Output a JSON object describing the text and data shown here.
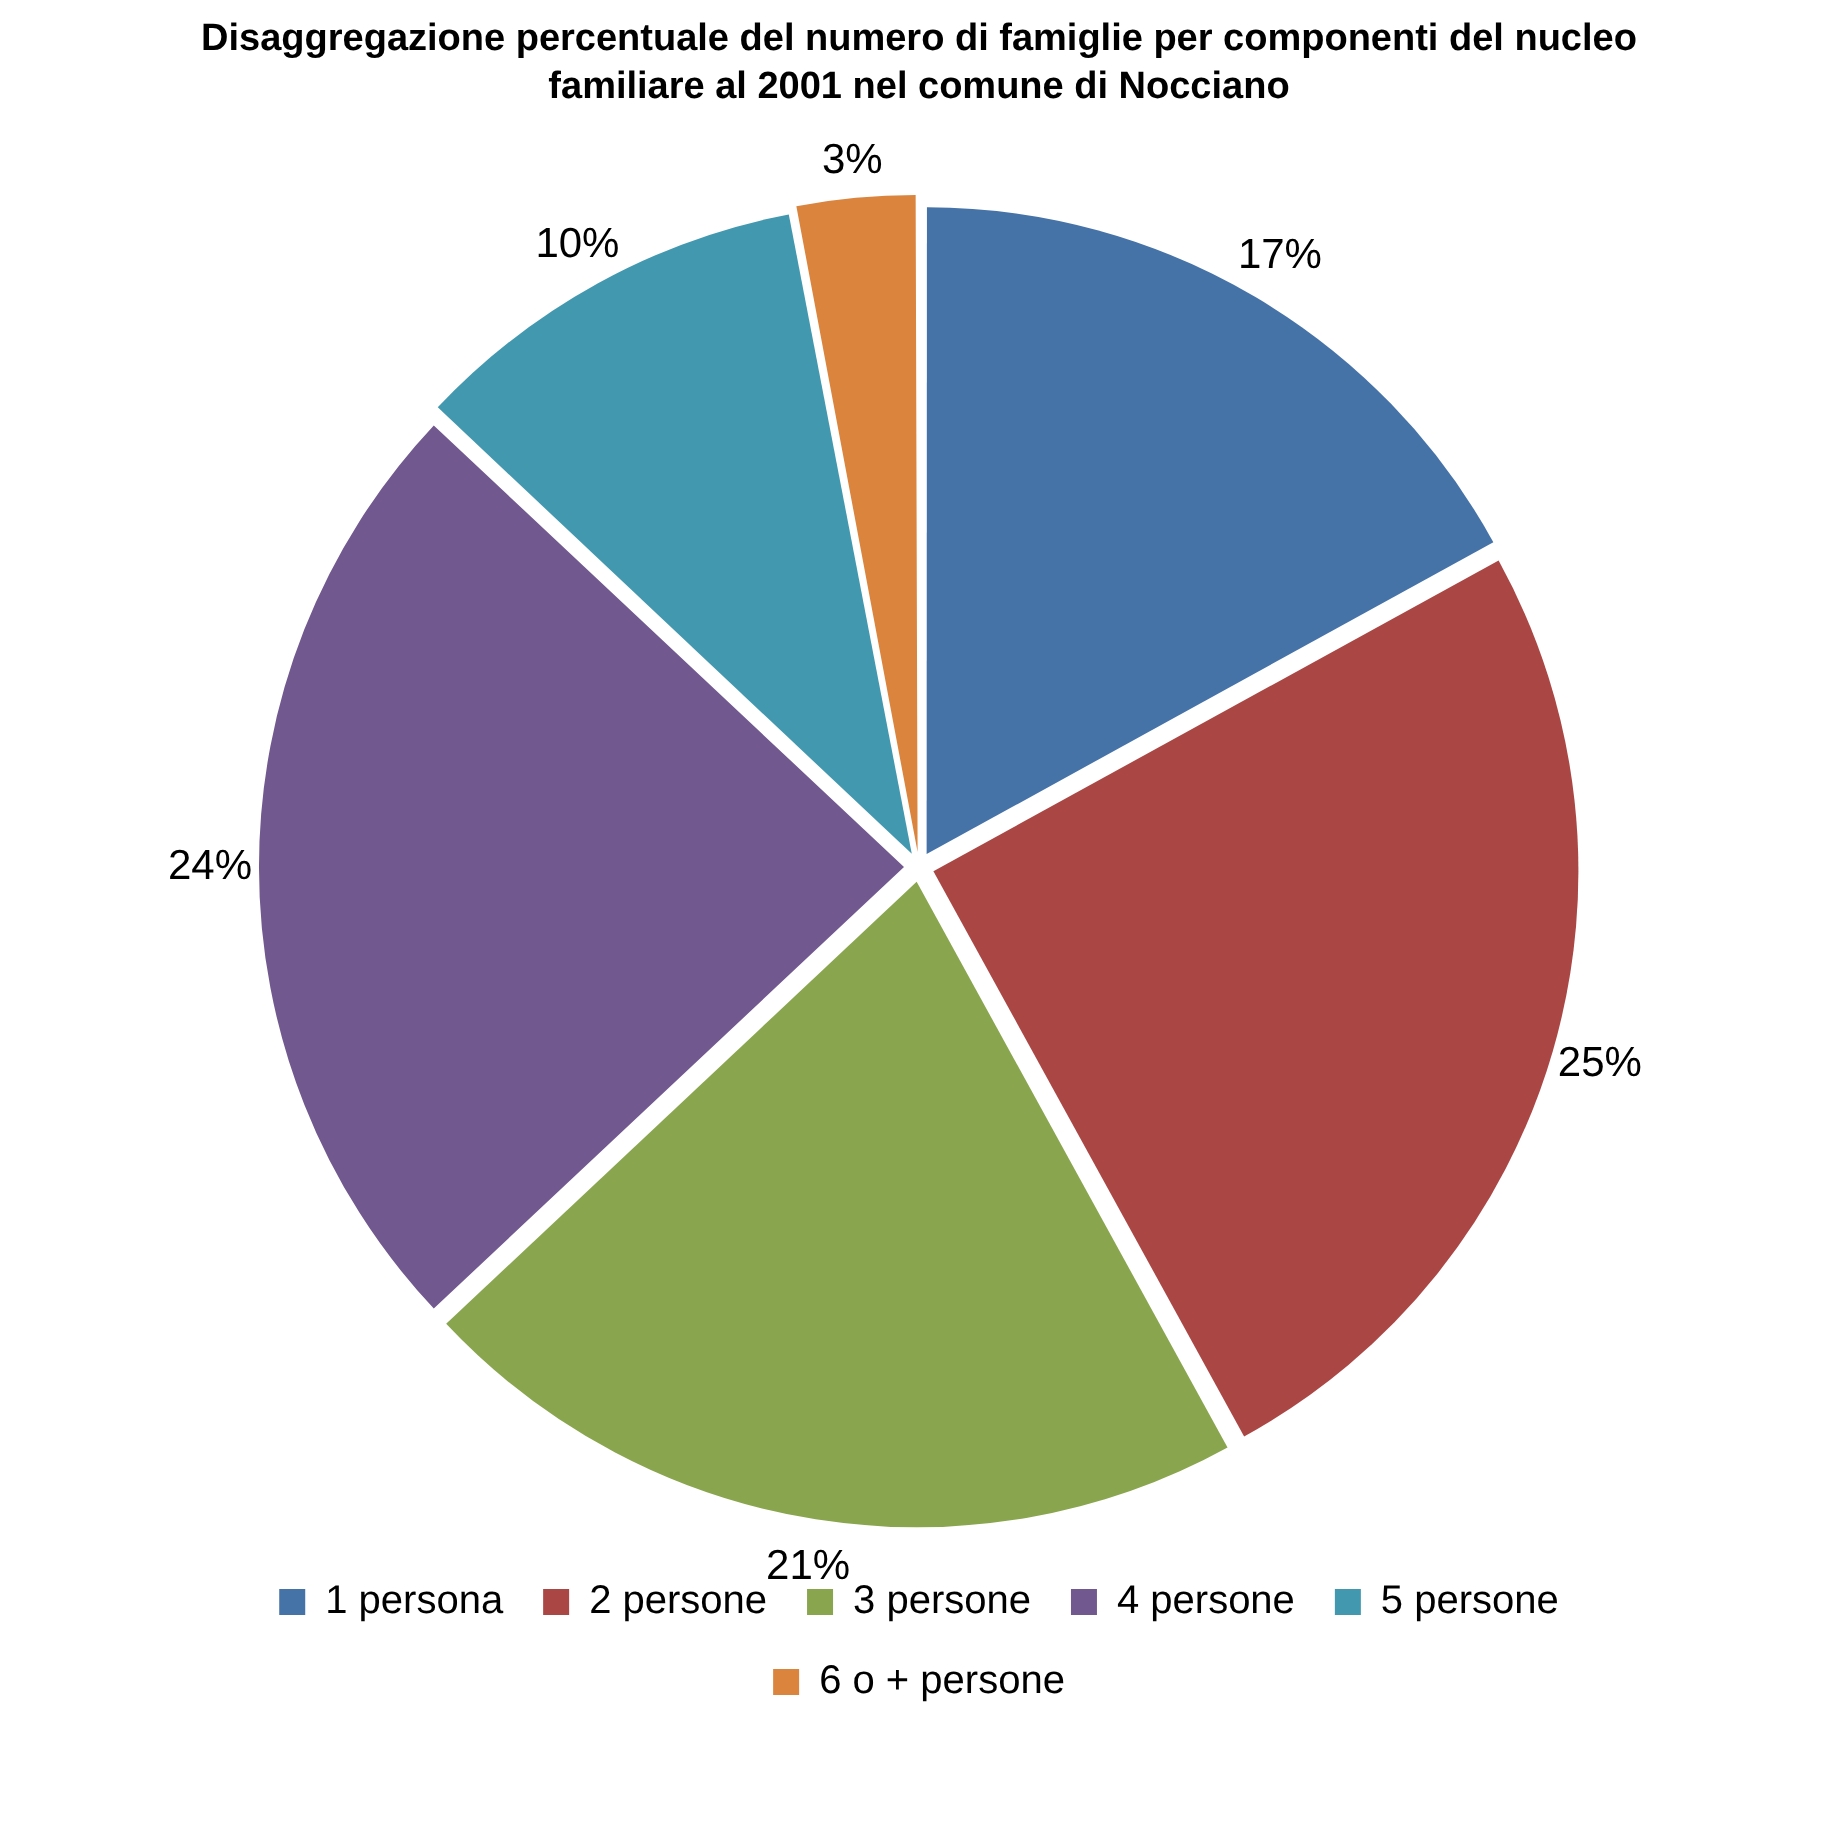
{
  "chart_data": {
    "type": "pie",
    "title": "Disaggregazione percentuale del numero di famiglie per componenti del nucleo familiare al 2001 nel comune di Nocciano",
    "categories": [
      "1 persona",
      "2 persone",
      "3 persone",
      "4 persone",
      "5 persone",
      "6 o + persone"
    ],
    "values": [
      17,
      25,
      21,
      24,
      10,
      3
    ],
    "value_labels": [
      "17%",
      "25%",
      "21%",
      "24%",
      "10%",
      "3%"
    ],
    "colors": [
      "#4572a7",
      "#aa4643",
      "#89a54e",
      "#71588f",
      "#4198af",
      "#db843d"
    ],
    "legend": "bottom"
  }
}
